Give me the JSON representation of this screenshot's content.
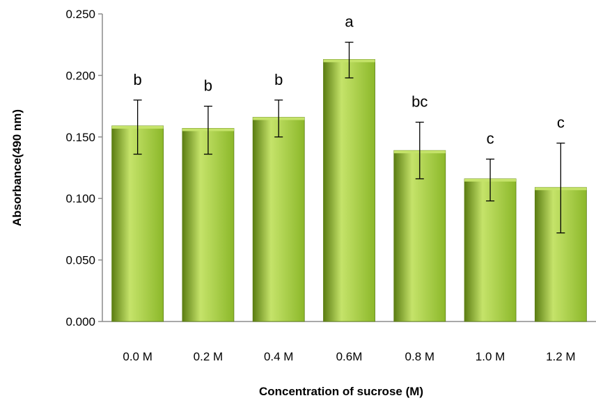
{
  "chart_data": {
    "type": "bar",
    "title": "",
    "xlabel": "Concentration of sucrose (M)",
    "ylabel": "Absorbance(490 nm)",
    "ylim": [
      0,
      0.25
    ],
    "yticks": [
      "0.000",
      "0.050",
      "0.100",
      "0.150",
      "0.200",
      "0.250"
    ],
    "categories": [
      "0.0 M",
      "0.2 M",
      "0.4 M",
      "0.6M",
      "0.8 M",
      "1.0 M",
      "1.2 M"
    ],
    "values": [
      0.159,
      0.157,
      0.166,
      0.213,
      0.139,
      0.116,
      0.109
    ],
    "error_low": [
      0.136,
      0.136,
      0.15,
      0.198,
      0.116,
      0.098,
      0.072
    ],
    "error_high": [
      0.18,
      0.175,
      0.18,
      0.227,
      0.162,
      0.132,
      0.145
    ],
    "significance_labels": [
      "b",
      "b",
      "b",
      "a",
      "bc",
      "c",
      "c"
    ],
    "grid": false,
    "legend": "none",
    "bar_color": "#8cb82a",
    "bar_highlight": "#c5e36a",
    "bar_shadow": "#5b7d12"
  }
}
